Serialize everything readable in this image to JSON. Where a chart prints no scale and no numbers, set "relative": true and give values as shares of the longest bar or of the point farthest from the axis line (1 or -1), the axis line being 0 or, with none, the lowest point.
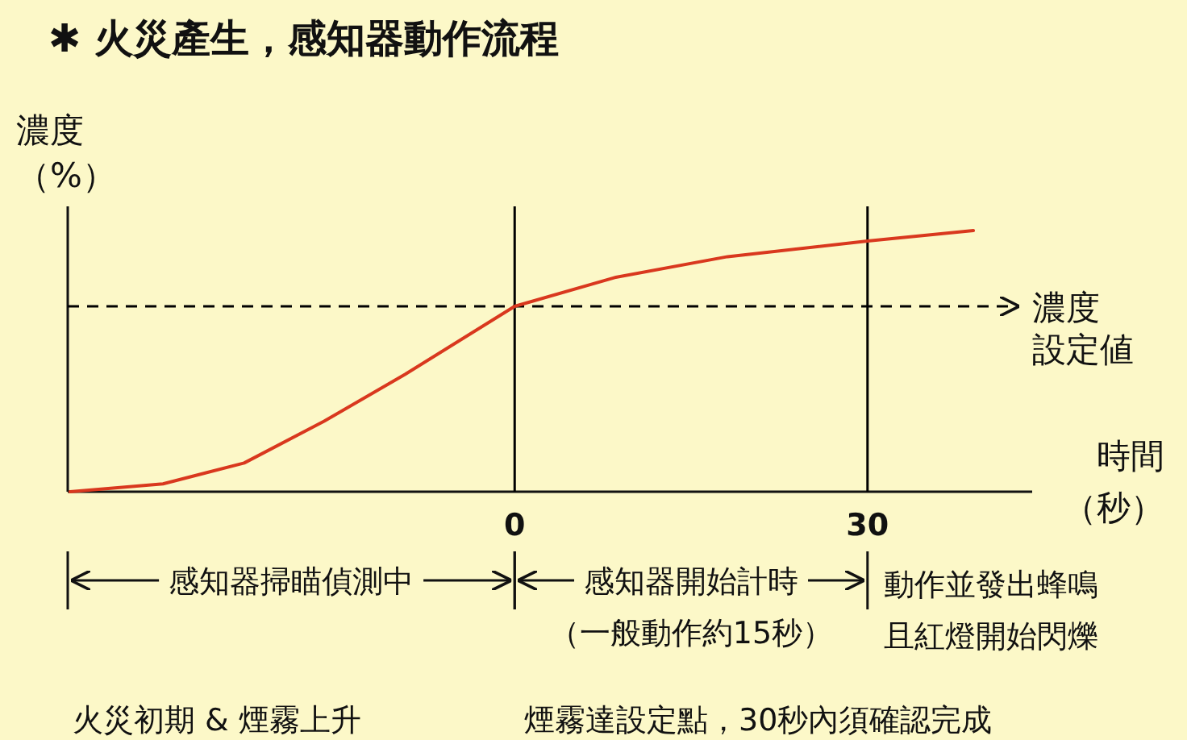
{
  "chart_data": {
    "type": "line",
    "title": "✱ 火災產生，感知器動作流程",
    "ylabel": "濃度（%）",
    "xlabel": "時間（秒）",
    "relative": true,
    "x": [
      -37.8,
      -29.9,
      -23,
      -16.2,
      -9.3,
      0,
      8.5,
      18.1,
      30,
      39
    ],
    "series": [
      {
        "color": "#d9381e",
        "values": [
          0,
          0.03,
          0.11,
          0.27,
          0.45,
          0.71,
          0.82,
          0.9,
          0.96,
          1.0
        ]
      }
    ],
    "xlim": [
      -38,
      44
    ],
    "xticks": [
      0,
      30
    ],
    "ref_lines": [
      {
        "axis": "x",
        "value": 0,
        "color": "#000000",
        "line_style": "solid"
      },
      {
        "axis": "x",
        "value": 30,
        "color": "#000000",
        "line_style": "solid"
      },
      {
        "axis": "y",
        "value": 0.71,
        "label": "濃度設定値",
        "color": "#000000",
        "line_style": "dashed"
      }
    ],
    "annotations": [
      "感知器掃瞄偵測中",
      "感知器開始計時",
      "（一般動作約15秒）",
      "動作並發出蜂鳴",
      "且紅燈開始閃爍",
      "火災初期 & 煙霧上升",
      "煙霧達設定點，30秒內須確認完成"
    ]
  }
}
